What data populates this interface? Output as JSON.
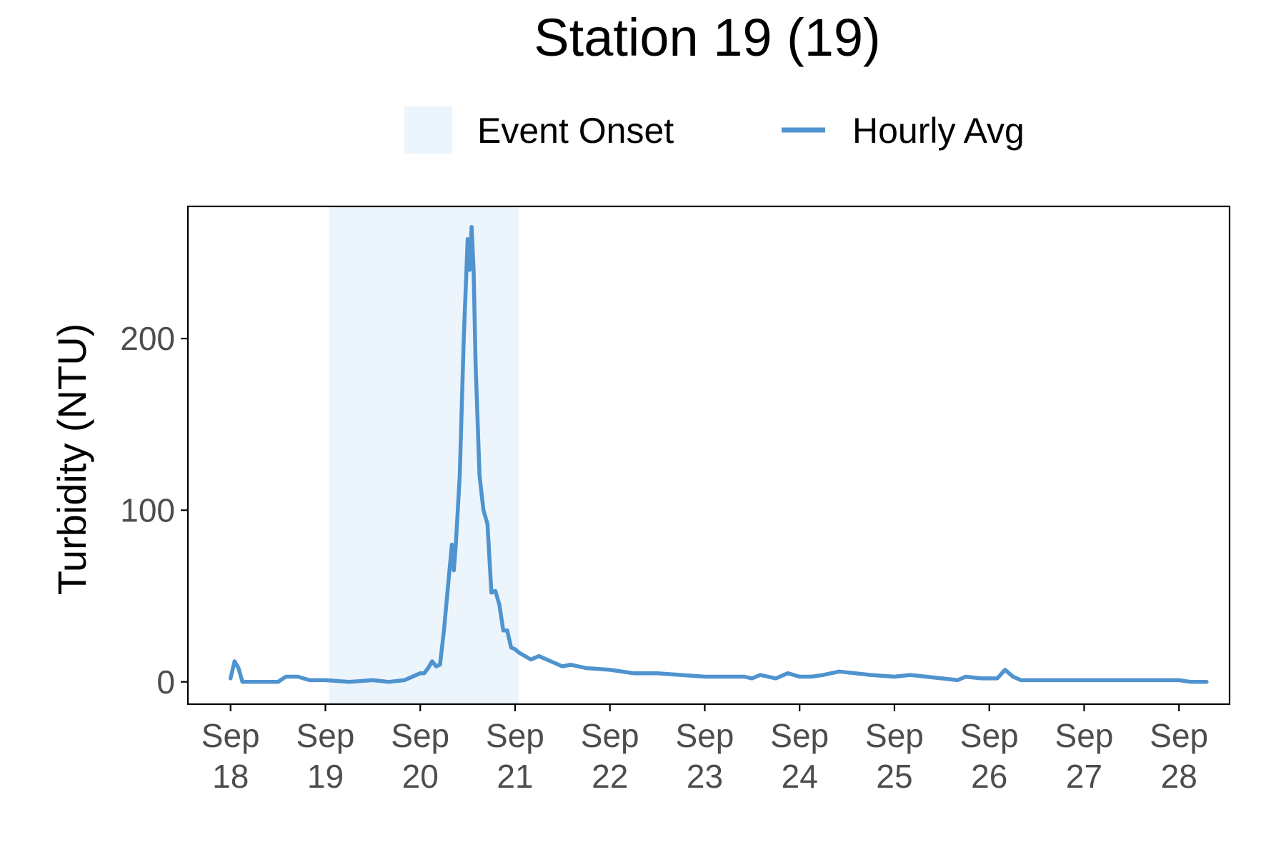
{
  "chart_data": {
    "type": "line",
    "title": "Station 19 (19)",
    "xlabel": "",
    "ylabel": "Turbidity (NTU)",
    "colors": {
      "line": "#4f93cf",
      "band": "#ecf4fc",
      "axis": "#000000",
      "tick_text": "#4d4d4d"
    },
    "legend": {
      "position": "top",
      "band_label": "Event Onset",
      "line_label": "Hourly Avg"
    },
    "grid": false,
    "x_axis": {
      "type": "date",
      "range": [
        "2023-09-17T13:12",
        "2023-09-28T12:48"
      ],
      "ticks": [
        {
          "value": "2023-09-18",
          "line1": "Sep",
          "line2": "18"
        },
        {
          "value": "2023-09-19",
          "line1": "Sep",
          "line2": "19"
        },
        {
          "value": "2023-09-20",
          "line1": "Sep",
          "line2": "20"
        },
        {
          "value": "2023-09-21",
          "line1": "Sep",
          "line2": "21"
        },
        {
          "value": "2023-09-22",
          "line1": "Sep",
          "line2": "22"
        },
        {
          "value": "2023-09-23",
          "line1": "Sep",
          "line2": "23"
        },
        {
          "value": "2023-09-24",
          "line1": "Sep",
          "line2": "24"
        },
        {
          "value": "2023-09-25",
          "line1": "Sep",
          "line2": "25"
        },
        {
          "value": "2023-09-26",
          "line1": "Sep",
          "line2": "26"
        },
        {
          "value": "2023-09-27",
          "line1": "Sep",
          "line2": "27"
        },
        {
          "value": "2023-09-28",
          "line1": "Sep",
          "line2": "28"
        }
      ]
    },
    "y_axis": {
      "range": [
        -13,
        277
      ],
      "ticks": [
        {
          "value": 0,
          "label": "0"
        },
        {
          "value": 100,
          "label": "100"
        },
        {
          "value": 200,
          "label": "200"
        }
      ]
    },
    "band": {
      "start": "2023-09-19T01:00",
      "end": "2023-09-21T01:00"
    },
    "series": [
      {
        "name": "Hourly Avg",
        "points": [
          [
            "2023-09-18T00:00",
            2
          ],
          [
            "2023-09-18T01:00",
            12
          ],
          [
            "2023-09-18T02:00",
            8
          ],
          [
            "2023-09-18T03:00",
            0
          ],
          [
            "2023-09-18T06:00",
            0
          ],
          [
            "2023-09-18T12:00",
            0
          ],
          [
            "2023-09-18T14:00",
            3
          ],
          [
            "2023-09-18T17:00",
            3
          ],
          [
            "2023-09-18T20:00",
            1
          ],
          [
            "2023-09-19T00:00",
            1
          ],
          [
            "2023-09-19T06:00",
            0
          ],
          [
            "2023-09-19T12:00",
            1
          ],
          [
            "2023-09-19T16:00",
            0
          ],
          [
            "2023-09-19T20:00",
            1
          ],
          [
            "2023-09-20T00:00",
            5
          ],
          [
            "2023-09-20T01:00",
            5
          ],
          [
            "2023-09-20T02:00",
            8
          ],
          [
            "2023-09-20T03:00",
            12
          ],
          [
            "2023-09-20T04:00",
            9
          ],
          [
            "2023-09-20T05:00",
            10
          ],
          [
            "2023-09-20T06:00",
            30
          ],
          [
            "2023-09-20T07:00",
            55
          ],
          [
            "2023-09-20T08:00",
            80
          ],
          [
            "2023-09-20T08:30",
            65
          ],
          [
            "2023-09-20T09:00",
            80
          ],
          [
            "2023-09-20T10:00",
            120
          ],
          [
            "2023-09-20T11:00",
            200
          ],
          [
            "2023-09-20T12:00",
            258
          ],
          [
            "2023-09-20T12:30",
            240
          ],
          [
            "2023-09-20T13:00",
            265
          ],
          [
            "2023-09-20T13:30",
            240
          ],
          [
            "2023-09-20T14:00",
            185
          ],
          [
            "2023-09-20T15:00",
            120
          ],
          [
            "2023-09-20T16:00",
            100
          ],
          [
            "2023-09-20T17:00",
            92
          ],
          [
            "2023-09-20T18:00",
            52
          ],
          [
            "2023-09-20T19:00",
            53
          ],
          [
            "2023-09-20T20:00",
            45
          ],
          [
            "2023-09-20T21:00",
            30
          ],
          [
            "2023-09-20T22:00",
            30
          ],
          [
            "2023-09-20T23:00",
            20
          ],
          [
            "2023-09-21T00:00",
            19
          ],
          [
            "2023-09-21T01:00",
            17
          ],
          [
            "2023-09-21T04:00",
            13
          ],
          [
            "2023-09-21T06:00",
            15
          ],
          [
            "2023-09-21T08:00",
            13
          ],
          [
            "2023-09-21T12:00",
            9
          ],
          [
            "2023-09-21T14:00",
            10
          ],
          [
            "2023-09-21T18:00",
            8
          ],
          [
            "2023-09-22T00:00",
            7
          ],
          [
            "2023-09-22T06:00",
            5
          ],
          [
            "2023-09-22T12:00",
            5
          ],
          [
            "2023-09-22T18:00",
            4
          ],
          [
            "2023-09-23T00:00",
            3
          ],
          [
            "2023-09-23T06:00",
            3
          ],
          [
            "2023-09-23T10:00",
            3
          ],
          [
            "2023-09-23T12:00",
            2
          ],
          [
            "2023-09-23T14:00",
            4
          ],
          [
            "2023-09-23T18:00",
            2
          ],
          [
            "2023-09-23T21:00",
            5
          ],
          [
            "2023-09-24T00:00",
            3
          ],
          [
            "2023-09-24T03:00",
            3
          ],
          [
            "2023-09-24T06:00",
            4
          ],
          [
            "2023-09-24T10:00",
            6
          ],
          [
            "2023-09-24T14:00",
            5
          ],
          [
            "2023-09-24T18:00",
            4
          ],
          [
            "2023-09-25T00:00",
            3
          ],
          [
            "2023-09-25T04:00",
            4
          ],
          [
            "2023-09-25T08:00",
            3
          ],
          [
            "2023-09-25T12:00",
            2
          ],
          [
            "2023-09-25T16:00",
            1
          ],
          [
            "2023-09-25T18:00",
            3
          ],
          [
            "2023-09-25T22:00",
            2
          ],
          [
            "2023-09-26T02:00",
            2
          ],
          [
            "2023-09-26T04:00",
            7
          ],
          [
            "2023-09-26T06:00",
            3
          ],
          [
            "2023-09-26T08:00",
            1
          ],
          [
            "2023-09-26T18:00",
            1
          ],
          [
            "2023-09-27T00:00",
            1
          ],
          [
            "2023-09-27T06:00",
            1
          ],
          [
            "2023-09-27T12:00",
            1
          ],
          [
            "2023-09-27T18:00",
            1
          ],
          [
            "2023-09-28T00:00",
            1
          ],
          [
            "2023-09-28T03:00",
            0
          ],
          [
            "2023-09-28T07:00",
            0
          ]
        ]
      }
    ]
  }
}
